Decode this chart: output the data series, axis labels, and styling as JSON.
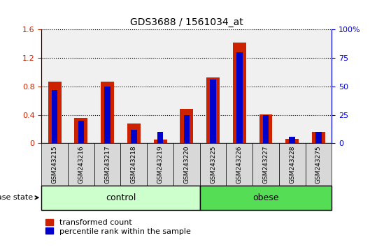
{
  "title": "GDS3688 / 1561034_at",
  "samples": [
    "GSM243215",
    "GSM243216",
    "GSM243217",
    "GSM243218",
    "GSM243219",
    "GSM243220",
    "GSM243225",
    "GSM243226",
    "GSM243227",
    "GSM243228",
    "GSM243275"
  ],
  "transformed_count": [
    0.87,
    0.36,
    0.87,
    0.28,
    0.05,
    0.48,
    0.93,
    1.42,
    0.41,
    0.06,
    0.16
  ],
  "percentile_rank_pct": [
    47,
    20,
    50,
    12,
    10,
    25,
    56,
    80,
    25,
    6,
    10
  ],
  "groups": [
    "control",
    "control",
    "control",
    "control",
    "control",
    "control",
    "obese",
    "obese",
    "obese",
    "obese",
    "obese"
  ],
  "group_colors": {
    "control": "#ccffcc",
    "obese": "#55dd55"
  },
  "bar_color_red": "#cc2200",
  "bar_color_blue": "#0000cc",
  "ylim_left": [
    0,
    1.6
  ],
  "ylim_right": [
    0,
    100
  ],
  "yticks_left": [
    0,
    0.4,
    0.8,
    1.2,
    1.6
  ],
  "yticks_right": [
    0,
    25,
    50,
    75,
    100
  ],
  "ytick_labels_left": [
    "0",
    "0.4",
    "0.8",
    "1.2",
    "1.6"
  ],
  "ytick_labels_right": [
    "0",
    "25",
    "50",
    "75",
    "100%"
  ],
  "plot_bg_color": "#f0f0f0",
  "grid_color": "black",
  "legend_labels": [
    "transformed count",
    "percentile rank within the sample"
  ],
  "disease_state_label": "disease state",
  "group_label_control": "control",
  "group_label_obese": "obese",
  "bar_width": 0.5,
  "n_control": 6,
  "n_obese": 5
}
